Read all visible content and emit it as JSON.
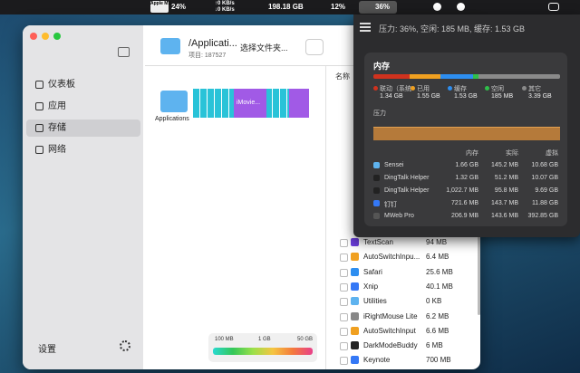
{
  "menubar": {
    "chip": "Apple M1",
    "cpu": "24%",
    "net_up": "↑0 KB/s",
    "net_down": "↓0 KB/s",
    "disk": "198.18 GB",
    "gpu": "12%",
    "memory": "36%"
  },
  "window": {
    "sidebar": [
      "仪表板",
      "应用",
      "存储",
      "网络"
    ],
    "settings": "设置",
    "folder": "/Applicati...",
    "items": "项目: 187527",
    "choose": "选择文件夹...",
    "folder_label": "Applications",
    "treemap_label": "iMovie...",
    "column": "名称",
    "scale": [
      "100 MB",
      "1 GB",
      "50 GB"
    ],
    "files": [
      {
        "name": "TextScan",
        "size": "94 MB"
      },
      {
        "name": "AutoSwitchInpu...",
        "size": "6.4 MB"
      },
      {
        "name": "Safari",
        "size": "25.6 MB"
      },
      {
        "name": "Xnip",
        "size": "40.1 MB"
      },
      {
        "name": "Utilities",
        "size": "0 KB"
      },
      {
        "name": "iRightMouse Lite",
        "size": "6.2 MB"
      },
      {
        "name": "AutoSwitchInput",
        "size": "6.6 MB"
      },
      {
        "name": "DarkModeBuddy",
        "size": "6 MB"
      },
      {
        "name": "Keynote",
        "size": "700 MB"
      }
    ]
  },
  "popup": {
    "summary": "压力: 36%, 空闲: 185 MB, 缓存: 1.53 GB",
    "title": "内存",
    "legend": [
      {
        "label": "联动（系统",
        "value": "1.34 GB",
        "color": "#d0321e"
      },
      {
        "label": "已用",
        "value": "1.55 GB",
        "color": "#f0a020"
      },
      {
        "label": "缓存",
        "value": "1.53 GB",
        "color": "#2d8ef0"
      },
      {
        "label": "空闲",
        "value": "185 MB",
        "color": "#2fbf4a"
      },
      {
        "label": "其它",
        "value": "3.39 GB",
        "color": "#8a8a8a"
      }
    ],
    "pressure": "压力",
    "columns": [
      "内存",
      "实际",
      "虚拟"
    ],
    "processes": [
      {
        "name": "Sensei",
        "memory": "1.66 GB",
        "real": "145.2 MB",
        "virtual": "10.68 GB"
      },
      {
        "name": "DingTalk Helper",
        "memory": "1.32 GB",
        "real": "51.2 MB",
        "virtual": "10.07 GB"
      },
      {
        "name": "DingTalk Helper",
        "memory": "1,022.7 MB",
        "real": "95.8 MB",
        "virtual": "9.69 GB"
      },
      {
        "name": "钉钉",
        "memory": "721.6 MB",
        "real": "143.7 MB",
        "virtual": "11.88 GB"
      },
      {
        "name": "MWeb Pro",
        "memory": "206.9 MB",
        "real": "143.6 MB",
        "virtual": "392.85 GB"
      }
    ]
  }
}
